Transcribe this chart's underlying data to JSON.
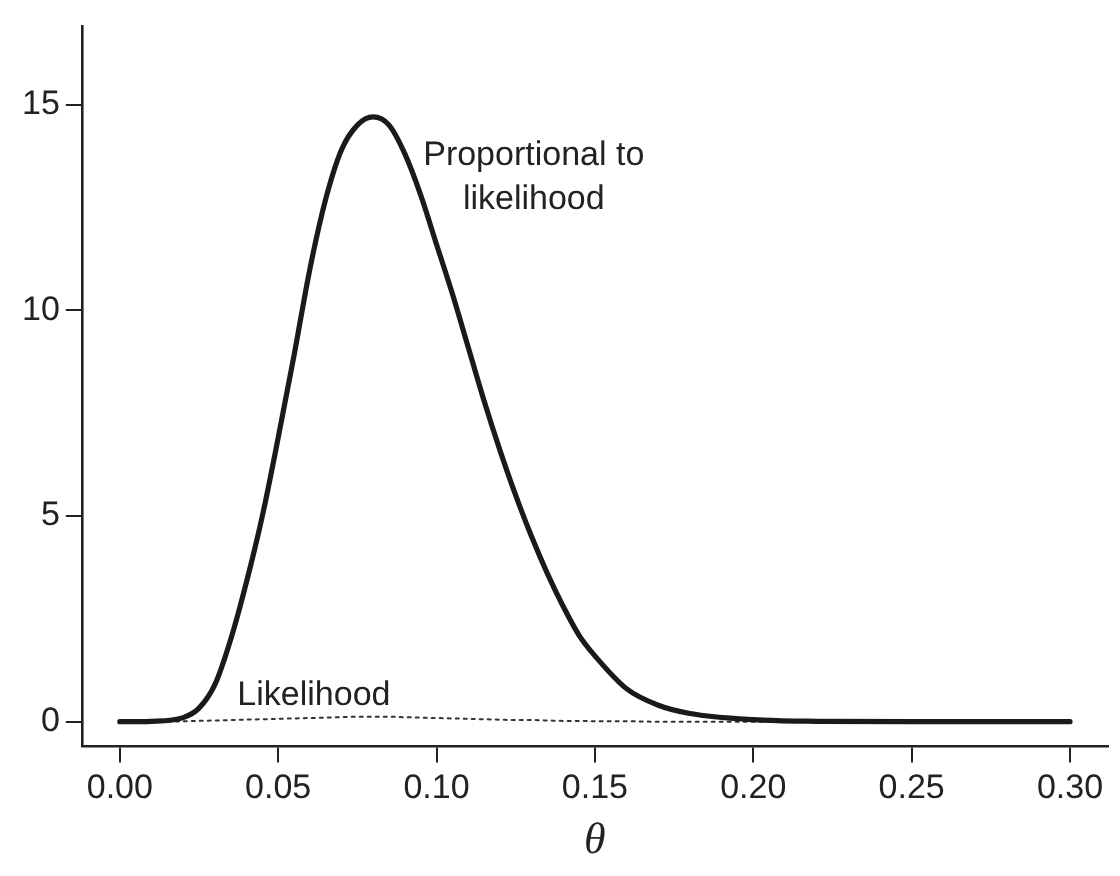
{
  "chart_data": {
    "type": "line",
    "xlabel": "θ",
    "x": [
      0,
      0.01,
      0.02,
      0.025,
      0.03,
      0.035,
      0.04,
      0.045,
      0.05,
      0.055,
      0.06,
      0.065,
      0.07,
      0.075,
      0.08,
      0.085,
      0.09,
      0.095,
      0.1,
      0.105,
      0.11,
      0.115,
      0.12,
      0.125,
      0.13,
      0.135,
      0.14,
      0.145,
      0.15,
      0.16,
      0.17,
      0.18,
      0.2,
      0.22,
      0.25,
      0.3
    ],
    "series": [
      {
        "name": "Proportional to likelihood",
        "color": "#1a1a1a",
        "line_style": "solid",
        "values": [
          0,
          0.01,
          0.1,
          0.33,
          0.9,
          2.0,
          3.4,
          5.0,
          6.9,
          8.9,
          11.0,
          12.7,
          13.9,
          14.5,
          14.7,
          14.5,
          13.8,
          12.8,
          11.6,
          10.4,
          9.1,
          7.8,
          6.6,
          5.5,
          4.5,
          3.6,
          2.8,
          2.1,
          1.6,
          0.8,
          0.4,
          0.2,
          0.05,
          0.01,
          0,
          0
        ]
      },
      {
        "name": "Likelihood",
        "color": "#333333",
        "line_style": "dotted",
        "values": [
          0,
          0,
          0.01,
          0.02,
          0.03,
          0.04,
          0.05,
          0.06,
          0.07,
          0.08,
          0.09,
          0.1,
          0.11,
          0.12,
          0.12,
          0.12,
          0.11,
          0.1,
          0.09,
          0.08,
          0.07,
          0.06,
          0.05,
          0.04,
          0.04,
          0.03,
          0.02,
          0.02,
          0.01,
          0.01,
          0,
          0,
          0,
          0,
          0,
          0
        ]
      }
    ],
    "xlim": [
      -0.012,
      0.312
    ],
    "ylim": [
      -0.6,
      16.9
    ],
    "xticks": [
      {
        "value": 0,
        "label": "0.00"
      },
      {
        "value": 0.05,
        "label": "0.05"
      },
      {
        "value": 0.1,
        "label": "0.10"
      },
      {
        "value": 0.15,
        "label": "0.15"
      },
      {
        "value": 0.2,
        "label": "0.20"
      },
      {
        "value": 0.25,
        "label": "0.25"
      },
      {
        "value": 0.3,
        "label": "0.30"
      }
    ],
    "yticks": [
      0,
      5,
      10,
      15
    ],
    "grid": false,
    "legend": false
  }
}
